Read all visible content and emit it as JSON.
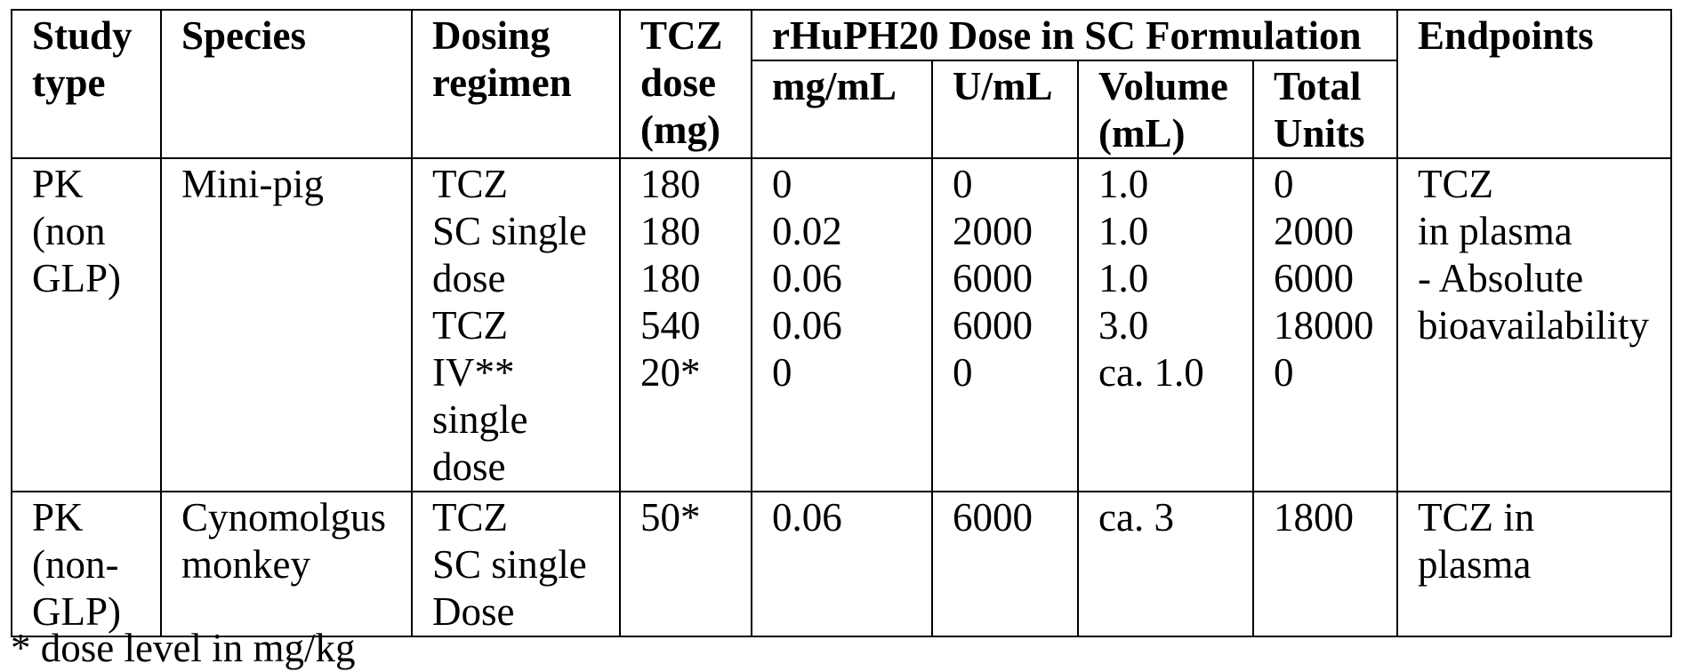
{
  "table": {
    "headers": {
      "study_type": [
        "Study",
        "type"
      ],
      "species": [
        "Species"
      ],
      "dosing_regimen": [
        "Dosing",
        "regimen"
      ],
      "tcz_dose": [
        "TCZ",
        "dose",
        "(mg)"
      ],
      "rhuph20_group": "rHuPH20 Dose in SC Formulation",
      "mg_ml": [
        "mg/mL"
      ],
      "u_ml": [
        "U/mL"
      ],
      "volume": [
        "Volume",
        "(mL)"
      ],
      "total_units": [
        "Total",
        "Units"
      ],
      "endpoints": [
        "Endpoints"
      ]
    },
    "rows": [
      {
        "study_type": [
          "PK",
          "(non",
          "GLP)"
        ],
        "species": [
          "Mini-pig"
        ],
        "dosing_regimen": [
          "TCZ",
          "SC single",
          "dose",
          "TCZ",
          "IV**",
          "single",
          "dose"
        ],
        "tcz_dose": [
          "180",
          "180",
          "180",
          "540",
          "20*"
        ],
        "mg_ml": [
          "0",
          "0.02",
          "0.06",
          "0.06",
          "0"
        ],
        "u_ml": [
          "0",
          "2000",
          "6000",
          "6000",
          "0"
        ],
        "volume": [
          "1.0",
          "1.0",
          "1.0",
          "3.0",
          "ca. 1.0"
        ],
        "total_units": [
          "0",
          "2000",
          "6000",
          "18000",
          "0"
        ],
        "endpoints": [
          "TCZ",
          "in plasma",
          "- Absolute",
          "bioavailability"
        ]
      },
      {
        "study_type": [
          "PK",
          "(non-",
          "GLP)"
        ],
        "species": [
          "Cynomolgus",
          "monkey"
        ],
        "dosing_regimen": [
          "TCZ",
          "SC single",
          "Dose"
        ],
        "tcz_dose": [
          "50*"
        ],
        "mg_ml": [
          "0.06"
        ],
        "u_ml": [
          "6000"
        ],
        "volume": [
          "ca. 3"
        ],
        "total_units": [
          "1800"
        ],
        "endpoints": [
          "TCZ in",
          "plasma"
        ]
      }
    ]
  },
  "footnote": "* dose level in mg/kg"
}
